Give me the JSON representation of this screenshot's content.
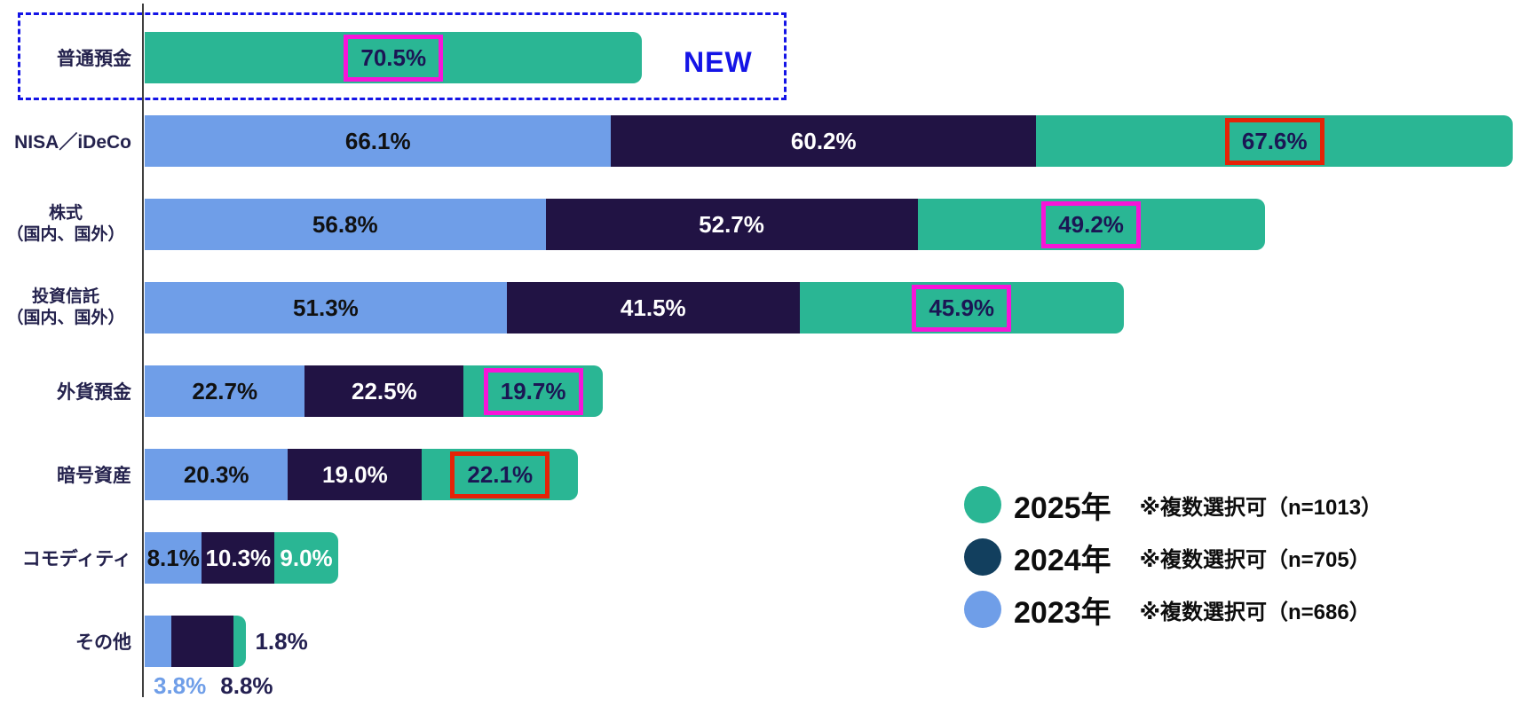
{
  "annotations": {
    "new_label": "NEW"
  },
  "colors": {
    "green_2025": "#2ab694",
    "blue_2023": "#6f9ee8",
    "navy_2024": "#211344",
    "legend_navy_2024": "#123f5e",
    "magenta_box": "#f715d8",
    "red_box": "#e52207",
    "dashed_blue": "#1414e6",
    "text_dark": "#111111",
    "text_navy": "#1b1654",
    "axis": "#3f3f3f"
  },
  "chart_data": {
    "type": "bar",
    "orientation": "horizontal",
    "unit": "%",
    "grid": false,
    "legend_position": "bottom-right",
    "series": [
      {
        "year": "2023",
        "color": "#6f9ee8"
      },
      {
        "year": "2024",
        "color": "#211344"
      },
      {
        "year": "2025",
        "color": "#2ab694"
      }
    ],
    "legend": [
      {
        "year_label": "2025年",
        "note": "※複数選択可（n=1013）",
        "color": "#2ab694"
      },
      {
        "year_label": "2024年",
        "note": "※複数選択可（n=705）",
        "color": "#123f5e"
      },
      {
        "year_label": "2023年",
        "note": "※複数選択可（n=686）",
        "color": "#6f9ee8"
      }
    ],
    "highlight_colors": {
      "magenta": "#f715d8",
      "red": "#e52207"
    },
    "categories": [
      {
        "label_lines": [
          "普通預金"
        ],
        "values": {
          "2023": null,
          "2024": null,
          "2025": 70.5
        },
        "highlight_2025": "magenta",
        "labels_below": false,
        "is_new": true
      },
      {
        "label_lines": [
          "NISA／iDeCo"
        ],
        "values": {
          "2023": 66.1,
          "2024": 60.2,
          "2025": 67.6
        },
        "highlight_2025": "red",
        "labels_below": false,
        "is_new": false
      },
      {
        "label_lines": [
          "株式",
          "（国内、国外）"
        ],
        "values": {
          "2023": 56.8,
          "2024": 52.7,
          "2025": 49.2
        },
        "highlight_2025": "magenta",
        "labels_below": false,
        "is_new": false
      },
      {
        "label_lines": [
          "投資信託",
          "（国内、国外）"
        ],
        "values": {
          "2023": 51.3,
          "2024": 41.5,
          "2025": 45.9
        },
        "highlight_2025": "magenta",
        "labels_below": false,
        "is_new": false
      },
      {
        "label_lines": [
          "外貨預金"
        ],
        "values": {
          "2023": 22.7,
          "2024": 22.5,
          "2025": 19.7
        },
        "highlight_2025": "magenta",
        "labels_below": false,
        "is_new": false
      },
      {
        "label_lines": [
          "暗号資産"
        ],
        "values": {
          "2023": 20.3,
          "2024": 19.0,
          "2025": 22.1
        },
        "highlight_2025": "red",
        "labels_below": false,
        "is_new": false
      },
      {
        "label_lines": [
          "コモディティ"
        ],
        "values": {
          "2023": 8.1,
          "2024": 10.3,
          "2025": 9.0
        },
        "highlight_2025": null,
        "labels_below": false,
        "is_new": false
      },
      {
        "label_lines": [
          "その他"
        ],
        "values": {
          "2023": 3.8,
          "2024": 8.8,
          "2025": 1.8
        },
        "highlight_2025": null,
        "labels_below": true,
        "is_new": false
      }
    ]
  }
}
